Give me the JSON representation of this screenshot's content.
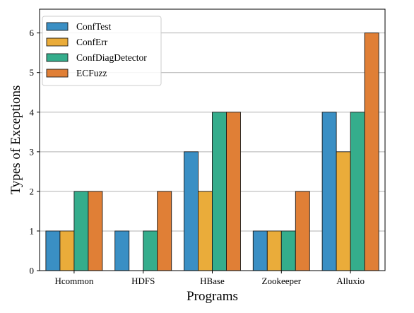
{
  "chart_data": {
    "type": "bar",
    "title": "",
    "xlabel": "Programs",
    "ylabel": "Types of Exceptions",
    "categories": [
      "Hcommon",
      "HDFS",
      "HBase",
      "Zookeeper",
      "Alluxio"
    ],
    "series": [
      {
        "name": "ConfTest",
        "color": "#3a8fc4",
        "values": [
          1,
          1,
          3,
          1,
          4
        ]
      },
      {
        "name": "ConfErr",
        "color": "#eaac3a",
        "values": [
          1,
          0,
          2,
          1,
          3
        ]
      },
      {
        "name": "ConfDiagDetector",
        "color": "#35ad8c",
        "values": [
          2,
          1,
          4,
          1,
          4
        ]
      },
      {
        "name": "ECFuzz",
        "color": "#e07f36",
        "values": [
          2,
          2,
          4,
          2,
          6
        ]
      }
    ],
    "ylim": [
      0,
      6.6
    ],
    "yticks": [
      0,
      1,
      2,
      3,
      4,
      5,
      6
    ],
    "grid": "horizontal",
    "legend": "top-left"
  }
}
